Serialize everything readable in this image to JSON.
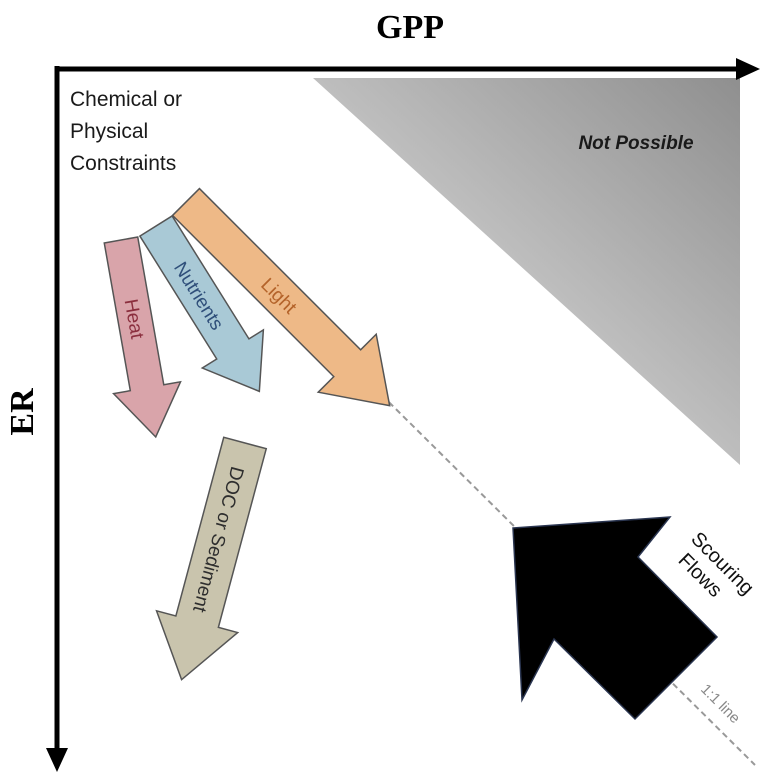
{
  "axes": {
    "x_label": "GPP",
    "y_label": "ER"
  },
  "regions": {
    "not_possible": "Not Possible"
  },
  "labels": {
    "constraints_line1": "Chemical or",
    "constraints_line2": "Physical",
    "constraints_line3": "Constraints",
    "scouring_line1": "Scouring",
    "scouring_line2": "Flows",
    "one_to_one": "1:1 line"
  },
  "arrows": {
    "heat": {
      "label": "Heat",
      "fill": "#d9a4aa",
      "text_color": "#8b2f3e"
    },
    "nutrients": {
      "label": "Nutrients",
      "fill": "#a9c9d6",
      "text_color": "#2f4f7a"
    },
    "light": {
      "label": "Light",
      "fill": "#eeb987",
      "text_color": "#b4632a"
    },
    "doc": {
      "label": "DOC or Sediment",
      "fill": "#c9c4ad",
      "text_color": "#2e2e2e"
    },
    "scouring": {
      "fill": "#000000"
    }
  },
  "colors": {
    "axis": "#000000",
    "region_dark": "#8f8f8f",
    "region_light": "#ebebeb",
    "dashed_line": "#999999"
  }
}
